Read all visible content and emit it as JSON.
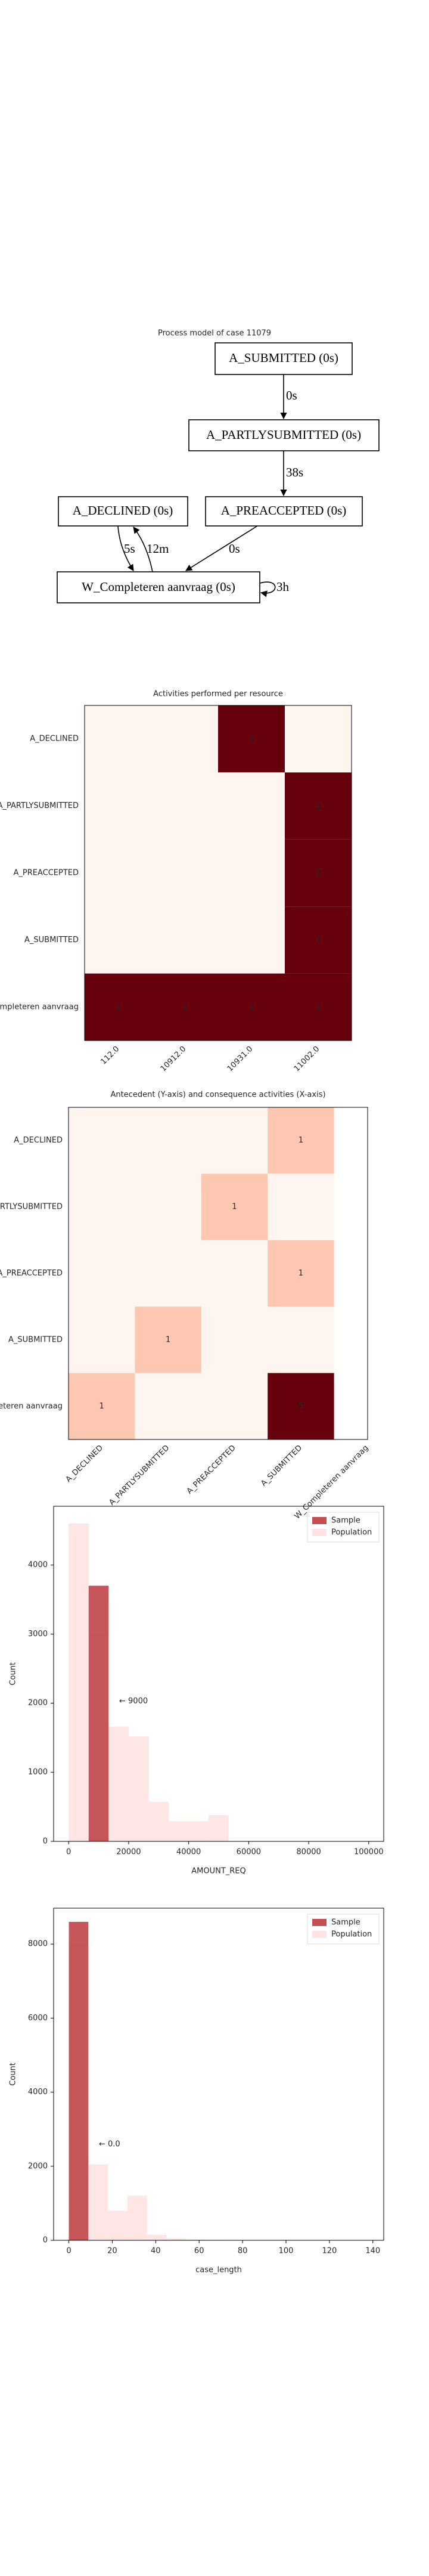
{
  "process_model": {
    "title": "Process model of case 11079",
    "nodes": [
      "A_SUBMITTED (0s)",
      "A_PARTLYSUBMITTED (0s)",
      "A_DECLINED (0s)",
      "A_PREACCEPTED (0s)",
      "W_Completeren aanvraag (0s)"
    ],
    "edges": [
      "0s",
      "38s",
      "0s",
      "5s",
      "12m",
      "3h"
    ]
  },
  "chart_data": [
    {
      "type": "heatmap",
      "title": "Activities performed per resource",
      "x_categories": [
        "112.0",
        "10912.0",
        "10931.0",
        "11002.0"
      ],
      "y_categories": [
        "A_DECLINED",
        "A_PARTLYSUBMITTED",
        "A_PREACCEPTED",
        "A_SUBMITTED",
        "W_Completeren aanvraag"
      ],
      "values": [
        [
          0,
          0,
          1,
          0
        ],
        [
          0,
          0,
          0,
          1
        ],
        [
          0,
          0,
          0,
          1
        ],
        [
          0,
          0,
          0,
          1
        ],
        [
          1,
          1,
          1,
          1
        ]
      ],
      "colormap": "Reds"
    },
    {
      "type": "heatmap",
      "title": "Antecedent (Y-axis) and consequence activities (X-axis)",
      "x_categories": [
        "A_DECLINED",
        "A_PARTLYSUBMITTED",
        "A_PREACCEPTED",
        "A_SUBMITTED",
        "W_Completeren aanvraag"
      ],
      "y_categories": [
        "A_DECLINED",
        "A_PARTLYSUBMITTED",
        "A_PREACCEPTED",
        "A_SUBMITTED",
        "W_Completeren aanvraag"
      ],
      "values": [
        [
          0,
          0,
          0,
          1,
          null
        ],
        [
          0,
          0,
          1,
          0,
          null
        ],
        [
          0,
          0,
          0,
          1,
          null
        ],
        [
          0,
          1,
          0,
          0,
          null
        ],
        [
          1,
          0,
          0,
          5,
          null
        ]
      ],
      "colormap": "Reds"
    },
    {
      "type": "histogram",
      "xlabel": "AMOUNT_REQ",
      "ylabel": "Count",
      "xlim": [
        -5000,
        105000
      ],
      "ylim": [
        0,
        4850
      ],
      "xticks": [
        0,
        20000,
        40000,
        60000,
        80000,
        100000
      ],
      "yticks": [
        0,
        1000,
        2000,
        3000,
        4000
      ],
      "series": [
        {
          "name": "Sample",
          "color": "#c44e52",
          "bins": [
            6667,
            13333
          ],
          "values": [
            3700
          ]
        },
        {
          "name": "Population",
          "color": "#fde3e1",
          "bins": [
            0,
            6667,
            13333,
            20000,
            26667,
            33333,
            40000,
            46667,
            53333,
            60000,
            66667,
            73333,
            80000,
            86667,
            93333,
            100000
          ],
          "values": [
            4600,
            3000,
            1660,
            1520,
            570,
            290,
            290,
            380,
            0,
            0,
            0,
            0,
            0,
            0,
            0
          ]
        }
      ],
      "annotation": "← 9000",
      "legend": "upper right"
    },
    {
      "type": "histogram",
      "xlabel": "case_length",
      "ylabel": "Count",
      "xlim": [
        -7,
        145
      ],
      "ylim": [
        0,
        8970
      ],
      "xticks": [
        0,
        20,
        40,
        60,
        80,
        100,
        120,
        140
      ],
      "yticks": [
        0,
        2000,
        4000,
        6000,
        8000
      ],
      "series": [
        {
          "name": "Sample",
          "color": "#c44e52",
          "bins": [
            0,
            9
          ],
          "values": [
            8600
          ]
        },
        {
          "name": "Population",
          "color": "#fde3e1",
          "bins": [
            0,
            9,
            18,
            27,
            36,
            45,
            54,
            63,
            72,
            81,
            90,
            99,
            108,
            117,
            126,
            135,
            144
          ],
          "values": [
            8000,
            2050,
            800,
            1200,
            150,
            50,
            20,
            10,
            0,
            0,
            0,
            0,
            0,
            0,
            0,
            0
          ]
        }
      ],
      "annotation": "← 0.0",
      "legend": "upper right"
    }
  ]
}
